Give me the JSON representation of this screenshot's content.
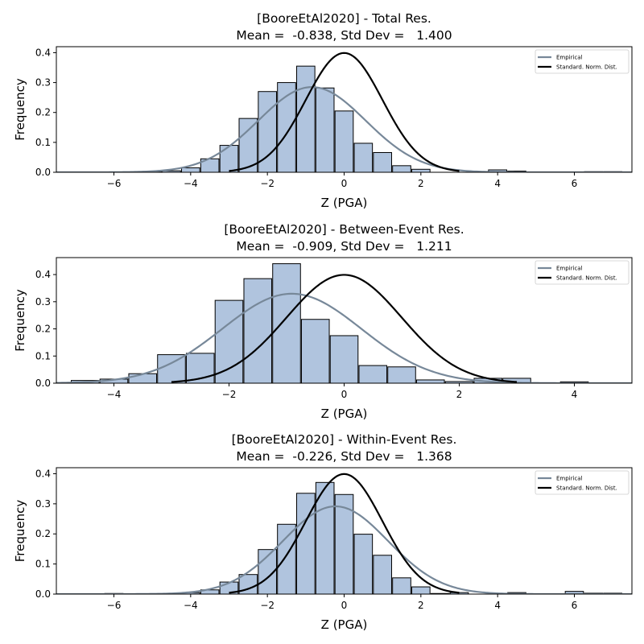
{
  "chart_data": [
    {
      "type": "bar",
      "title": "[BooreEtAl2020] - Total Res.",
      "subtitle": "Mean =  -0.838, Std Dev =   1.400",
      "xlabel": "Z (PGA)",
      "ylabel": "Frequency",
      "xlim": [
        -7.5,
        7.5
      ],
      "ylim": [
        0,
        0.42
      ],
      "xticks": [
        -6,
        -4,
        -2,
        0,
        2,
        4,
        6
      ],
      "yticks": [
        "0.0",
        "0.1",
        "0.2",
        "0.3",
        "0.4"
      ],
      "bin_width": 0.5,
      "bins": [
        {
          "x": -6.0,
          "y": 0.001
        },
        {
          "x": -5.0,
          "y": 0.003
        },
        {
          "x": -4.5,
          "y": 0.005
        },
        {
          "x": -4.0,
          "y": 0.015
        },
        {
          "x": -3.5,
          "y": 0.045
        },
        {
          "x": -3.0,
          "y": 0.09
        },
        {
          "x": -2.5,
          "y": 0.18
        },
        {
          "x": -2.0,
          "y": 0.27
        },
        {
          "x": -1.5,
          "y": 0.3
        },
        {
          "x": -1.0,
          "y": 0.355
        },
        {
          "x": -0.5,
          "y": 0.282
        },
        {
          "x": 0.0,
          "y": 0.205
        },
        {
          "x": 0.5,
          "y": 0.097
        },
        {
          "x": 1.0,
          "y": 0.066
        },
        {
          "x": 1.5,
          "y": 0.022
        },
        {
          "x": 2.0,
          "y": 0.01
        },
        {
          "x": 4.0,
          "y": 0.008
        },
        {
          "x": 4.5,
          "y": 0.004
        },
        {
          "x": 6.5,
          "y": 0.002
        },
        {
          "x": 7.0,
          "y": 0.002
        }
      ],
      "series": [
        {
          "name": "Empirical",
          "kind": "normal-pdf",
          "mean": -0.838,
          "std": 1.4,
          "color": "#778899"
        },
        {
          "name": "Standard. Norm. Dist.",
          "kind": "normal-pdf",
          "mean": 0,
          "std": 1,
          "range": [
            -3,
            3
          ],
          "color": "#000000"
        }
      ],
      "legend": "top-right",
      "grid": false
    },
    {
      "type": "bar",
      "title": "[BooreEtAl2020] - Between-Event Res.",
      "subtitle": "Mean =  -0.909, Std Dev =   1.211",
      "xlabel": "Z (PGA)",
      "ylabel": "Frequency",
      "xlim": [
        -5,
        5
      ],
      "ylim": [
        0,
        0.4625
      ],
      "xticks": [
        -4,
        -2,
        0,
        2,
        4
      ],
      "yticks": [
        "0.0",
        "0.1",
        "0.2",
        "0.3",
        "0.4"
      ],
      "bin_width": 0.5,
      "bins": [
        {
          "x": -4.5,
          "y": 0.01
        },
        {
          "x": -4.0,
          "y": 0.015
        },
        {
          "x": -3.5,
          "y": 0.035
        },
        {
          "x": -3.0,
          "y": 0.105
        },
        {
          "x": -2.5,
          "y": 0.11
        },
        {
          "x": -2.0,
          "y": 0.305
        },
        {
          "x": -1.5,
          "y": 0.385
        },
        {
          "x": -1.0,
          "y": 0.44
        },
        {
          "x": -0.5,
          "y": 0.235
        },
        {
          "x": 0.0,
          "y": 0.175
        },
        {
          "x": 0.5,
          "y": 0.065
        },
        {
          "x": 1.0,
          "y": 0.06
        },
        {
          "x": 1.5,
          "y": 0.012
        },
        {
          "x": 2.0,
          "y": 0.006
        },
        {
          "x": 2.5,
          "y": 0.018
        },
        {
          "x": 3.0,
          "y": 0.018
        },
        {
          "x": 4.0,
          "y": 0.005
        }
      ],
      "series": [
        {
          "name": "Empirical",
          "kind": "normal-pdf",
          "mean": -0.909,
          "std": 1.211,
          "color": "#778899"
        },
        {
          "name": "Standard. Norm. Dist.",
          "kind": "normal-pdf",
          "mean": 0,
          "std": 1,
          "range": [
            -3,
            3
          ],
          "color": "#000000"
        }
      ],
      "legend": "top-right",
      "grid": false
    },
    {
      "type": "bar",
      "title": "[BooreEtAl2020] - Within-Event Res.",
      "subtitle": "Mean =  -0.226, Std Dev =   1.368",
      "xlabel": "Z (PGA)",
      "ylabel": "Frequency",
      "xlim": [
        -7.5,
        7.5
      ],
      "ylim": [
        0,
        0.42
      ],
      "xticks": [
        -6,
        -4,
        -2,
        0,
        2,
        4,
        6
      ],
      "yticks": [
        "0.0",
        "0.1",
        "0.2",
        "0.3",
        "0.4"
      ],
      "bin_width": 0.5,
      "bins": [
        {
          "x": -6.0,
          "y": 0.002
        },
        {
          "x": -4.0,
          "y": 0.005
        },
        {
          "x": -3.5,
          "y": 0.014
        },
        {
          "x": -3.0,
          "y": 0.04
        },
        {
          "x": -2.5,
          "y": 0.065
        },
        {
          "x": -2.0,
          "y": 0.148
        },
        {
          "x": -1.5,
          "y": 0.232
        },
        {
          "x": -1.0,
          "y": 0.335
        },
        {
          "x": -0.5,
          "y": 0.371
        },
        {
          "x": 0.0,
          "y": 0.331
        },
        {
          "x": 0.5,
          "y": 0.199
        },
        {
          "x": 1.0,
          "y": 0.129
        },
        {
          "x": 1.5,
          "y": 0.054
        },
        {
          "x": 2.0,
          "y": 0.024
        },
        {
          "x": 2.5,
          "y": 0.002
        },
        {
          "x": 3.0,
          "y": 0.005
        },
        {
          "x": 4.5,
          "y": 0.005
        },
        {
          "x": 6.0,
          "y": 0.009
        },
        {
          "x": 6.5,
          "y": 0.003
        },
        {
          "x": 7.0,
          "y": 0.003
        }
      ],
      "series": [
        {
          "name": "Empirical",
          "kind": "normal-pdf",
          "mean": -0.226,
          "std": 1.368,
          "color": "#778899"
        },
        {
          "name": "Standard. Norm. Dist.",
          "kind": "normal-pdf",
          "mean": 0,
          "std": 1,
          "range": [
            -3,
            3
          ],
          "color": "#000000"
        }
      ],
      "legend": "top-right",
      "grid": false
    }
  ],
  "colors": {
    "bar_fill": "#b0c4de",
    "bar_edge": "#000000"
  }
}
